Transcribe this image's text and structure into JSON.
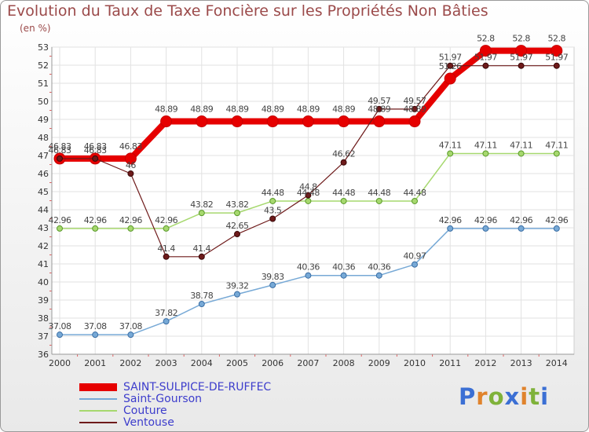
{
  "title": "Evolution du Taux de Taxe Foncière sur les Propriétés Non Bâties",
  "subtitle": "(en %)",
  "logo": {
    "letters": [
      "P",
      "r",
      "o",
      "x",
      "i",
      "t",
      "i"
    ],
    "colors": [
      "#3b6fd4",
      "#e0832c",
      "#7fb23a",
      "#3b6fd4",
      "#e0832c",
      "#7fb23a",
      "#3b6fd4"
    ]
  },
  "chart_data": {
    "type": "line",
    "title": "Evolution du Taux de Taxe Foncière sur les Propriétés Non Bâties",
    "ylabel": "(en %)",
    "xlabel": "",
    "ylim": [
      36,
      53
    ],
    "yticks": [
      "36",
      "37",
      "38",
      "39",
      "40",
      "41",
      "42",
      "43",
      "44",
      "45",
      "46",
      "47",
      "48",
      "49",
      "50",
      "51",
      "52",
      "53"
    ],
    "categories": [
      "2000",
      "2001",
      "2002",
      "2003",
      "2004",
      "2005",
      "2006",
      "2007",
      "2008",
      "2009",
      "2010",
      "2011",
      "2012",
      "2013",
      "2014"
    ],
    "grid": true,
    "legend_position": "bottom-left",
    "series": [
      {
        "name": "SAINT-SULPICE-DE-RUFFEC",
        "color": "#e60000",
        "values": [
          46.83,
          46.83,
          46.83,
          48.89,
          48.89,
          48.89,
          48.89,
          48.89,
          48.89,
          48.89,
          48.89,
          51.26,
          52.8,
          52.8,
          52.8
        ],
        "labels": [
          "46.83",
          "46.83",
          "46.83",
          "48.89",
          "48.89",
          "48.89",
          "48.89",
          "48.89",
          "48.89",
          "48.89",
          "48.89",
          "51.26",
          "52.8",
          "52.8",
          "52.8"
        ]
      },
      {
        "name": "Saint-Gourson",
        "color": "#77a9d6",
        "values": [
          37.08,
          37.08,
          37.08,
          37.82,
          38.78,
          39.32,
          39.83,
          40.36,
          40.36,
          40.36,
          40.97,
          42.96,
          42.96,
          42.96,
          42.96
        ],
        "labels": [
          "37.08",
          "37.08",
          "37.08",
          "37.82",
          "38.78",
          "39.32",
          "39.83",
          "40.36",
          "40.36",
          "40.36",
          "40.97",
          "42.96",
          "42.96",
          "42.96",
          "42.96"
        ]
      },
      {
        "name": "Couture",
        "color": "#a6d86e",
        "values": [
          42.96,
          42.96,
          42.96,
          42.96,
          43.82,
          43.82,
          44.48,
          44.48,
          44.48,
          44.48,
          44.48,
          47.11,
          47.11,
          47.11,
          47.11
        ],
        "labels": [
          "42.96",
          "42.96",
          "42.96",
          "42.96",
          "43.82",
          "43.82",
          "44.48",
          "44.48",
          "44.48",
          "44.48",
          "44.48",
          "47.11",
          "47.11",
          "47.11",
          "47.11"
        ]
      },
      {
        "name": "Ventouse",
        "color": "#6e1a1a",
        "values": [
          46.83,
          46.83,
          46,
          41.4,
          41.4,
          42.65,
          43.5,
          44.8,
          46.62,
          49.57,
          49.57,
          51.97,
          51.97,
          51.97,
          51.97
        ],
        "labels": [
          "46.83",
          "46.83",
          "46",
          "41.4",
          "41.4",
          "42.65",
          "43.5",
          "44.8",
          "46.62",
          "49.57",
          "49.57",
          "51.97",
          "51.97",
          "51.97",
          "51.97"
        ]
      }
    ]
  }
}
